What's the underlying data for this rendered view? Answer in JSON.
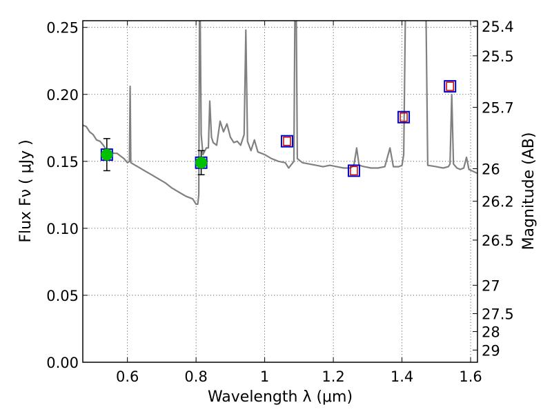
{
  "chart_data": {
    "type": "line",
    "xlabel": "Wavelength  λ (μm)",
    "ylabel": "Flux  Fν  ( μJy )",
    "y2label": "Magnitude (AB)",
    "xlim": [
      0.47,
      1.62
    ],
    "ylim": [
      0.0,
      0.255
    ],
    "grid": true,
    "x_ticks": [
      0.6,
      0.8,
      1.0,
      1.2,
      1.4,
      1.6
    ],
    "x_tick_labels": [
      "0.6",
      "0.8",
      "1",
      "1.2",
      "1.4",
      "1.6"
    ],
    "y_ticks": [
      0.0,
      0.05,
      0.1,
      0.15,
      0.2,
      0.25
    ],
    "y_tick_labels": [
      "0.00",
      "0.05",
      "0.10",
      "0.15",
      "0.20",
      "0.25"
    ],
    "right_axis_ticks": [
      {
        "label": "25.4",
        "flux": 0.2508
      },
      {
        "label": "25.5",
        "flux": 0.2288
      },
      {
        "label": "25.7",
        "flux": 0.1903
      },
      {
        "label": "26",
        "flux": 0.1445
      },
      {
        "label": "26.2",
        "flux": 0.1202
      },
      {
        "label": "26.5",
        "flux": 0.0912
      },
      {
        "label": "27",
        "flux": 0.0575
      },
      {
        "label": "27.5",
        "flux": 0.0363
      },
      {
        "label": "28",
        "flux": 0.0229
      },
      {
        "label": "29",
        "flux": 0.0091
      }
    ],
    "series": [
      {
        "name": "model_spectrum",
        "color": "#808080",
        "style": "line",
        "points": [
          [
            0.47,
            0.177
          ],
          [
            0.48,
            0.176
          ],
          [
            0.49,
            0.172
          ],
          [
            0.5,
            0.17
          ],
          [
            0.51,
            0.166
          ],
          [
            0.52,
            0.165
          ],
          [
            0.53,
            0.162
          ],
          [
            0.54,
            0.158
          ],
          [
            0.55,
            0.157
          ],
          [
            0.56,
            0.156
          ],
          [
            0.57,
            0.156
          ],
          [
            0.58,
            0.154
          ],
          [
            0.59,
            0.152
          ],
          [
            0.6,
            0.149
          ],
          [
            0.606,
            0.15
          ],
          [
            0.608,
            0.206
          ],
          [
            0.61,
            0.149
          ],
          [
            0.63,
            0.146
          ],
          [
            0.65,
            0.143
          ],
          [
            0.67,
            0.14
          ],
          [
            0.69,
            0.137
          ],
          [
            0.71,
            0.134
          ],
          [
            0.73,
            0.13
          ],
          [
            0.75,
            0.127
          ],
          [
            0.77,
            0.124
          ],
          [
            0.79,
            0.122
          ],
          [
            0.8,
            0.118
          ],
          [
            0.805,
            0.118
          ],
          [
            0.808,
            0.125
          ],
          [
            0.81,
            0.26
          ],
          [
            0.812,
            0.26
          ],
          [
            0.815,
            0.17
          ],
          [
            0.82,
            0.155
          ],
          [
            0.83,
            0.16
          ],
          [
            0.836,
            0.16
          ],
          [
            0.84,
            0.195
          ],
          [
            0.845,
            0.168
          ],
          [
            0.85,
            0.164
          ],
          [
            0.86,
            0.162
          ],
          [
            0.87,
            0.18
          ],
          [
            0.88,
            0.172
          ],
          [
            0.89,
            0.178
          ],
          [
            0.9,
            0.168
          ],
          [
            0.91,
            0.164
          ],
          [
            0.92,
            0.165
          ],
          [
            0.93,
            0.162
          ],
          [
            0.94,
            0.17
          ],
          [
            0.945,
            0.248
          ],
          [
            0.95,
            0.165
          ],
          [
            0.96,
            0.158
          ],
          [
            0.97,
            0.166
          ],
          [
            0.98,
            0.157
          ],
          [
            1.0,
            0.155
          ],
          [
            1.02,
            0.152
          ],
          [
            1.04,
            0.15
          ],
          [
            1.06,
            0.149
          ],
          [
            1.07,
            0.145
          ],
          [
            1.085,
            0.15
          ],
          [
            1.088,
            0.26
          ],
          [
            1.092,
            0.26
          ],
          [
            1.095,
            0.152
          ],
          [
            1.11,
            0.149
          ],
          [
            1.13,
            0.148
          ],
          [
            1.15,
            0.147
          ],
          [
            1.17,
            0.146
          ],
          [
            1.19,
            0.147
          ],
          [
            1.21,
            0.146
          ],
          [
            1.23,
            0.145
          ],
          [
            1.25,
            0.145
          ],
          [
            1.26,
            0.147
          ],
          [
            1.268,
            0.16
          ],
          [
            1.275,
            0.147
          ],
          [
            1.29,
            0.146
          ],
          [
            1.31,
            0.145
          ],
          [
            1.33,
            0.145
          ],
          [
            1.35,
            0.146
          ],
          [
            1.365,
            0.16
          ],
          [
            1.375,
            0.146
          ],
          [
            1.39,
            0.146
          ],
          [
            1.4,
            0.147
          ],
          [
            1.405,
            0.155
          ],
          [
            1.41,
            0.26
          ],
          [
            1.47,
            0.26
          ],
          [
            1.475,
            0.147
          ],
          [
            1.5,
            0.146
          ],
          [
            1.52,
            0.145
          ],
          [
            1.535,
            0.146
          ],
          [
            1.54,
            0.148
          ],
          [
            1.545,
            0.2
          ],
          [
            1.55,
            0.148
          ],
          [
            1.56,
            0.145
          ],
          [
            1.57,
            0.144
          ],
          [
            1.58,
            0.145
          ],
          [
            1.588,
            0.153
          ],
          [
            1.595,
            0.144
          ],
          [
            1.62,
            0.141
          ]
        ]
      },
      {
        "name": "observed_photometry",
        "marker": "circle",
        "fill": "#00c000",
        "edge": "#0000cc",
        "points": [
          {
            "x": 0.54,
            "y": 0.155,
            "yerr": 0.012
          },
          {
            "x": 0.815,
            "y": 0.149,
            "yerr": 0.009
          }
        ]
      },
      {
        "name": "model_photometry_outer",
        "marker": "square",
        "edge": "#0000cc",
        "points": [
          {
            "x": 0.54,
            "y": 0.155
          },
          {
            "x": 0.815,
            "y": 0.149
          },
          {
            "x": 1.065,
            "y": 0.165
          },
          {
            "x": 1.26,
            "y": 0.143
          },
          {
            "x": 1.405,
            "y": 0.183
          },
          {
            "x": 1.54,
            "y": 0.206
          }
        ]
      },
      {
        "name": "model_photometry_inner",
        "marker": "square",
        "edge": "#cc0000",
        "points": [
          {
            "x": 1.065,
            "y": 0.165
          },
          {
            "x": 1.26,
            "y": 0.143
          },
          {
            "x": 1.405,
            "y": 0.183
          },
          {
            "x": 1.54,
            "y": 0.206
          }
        ]
      }
    ]
  }
}
